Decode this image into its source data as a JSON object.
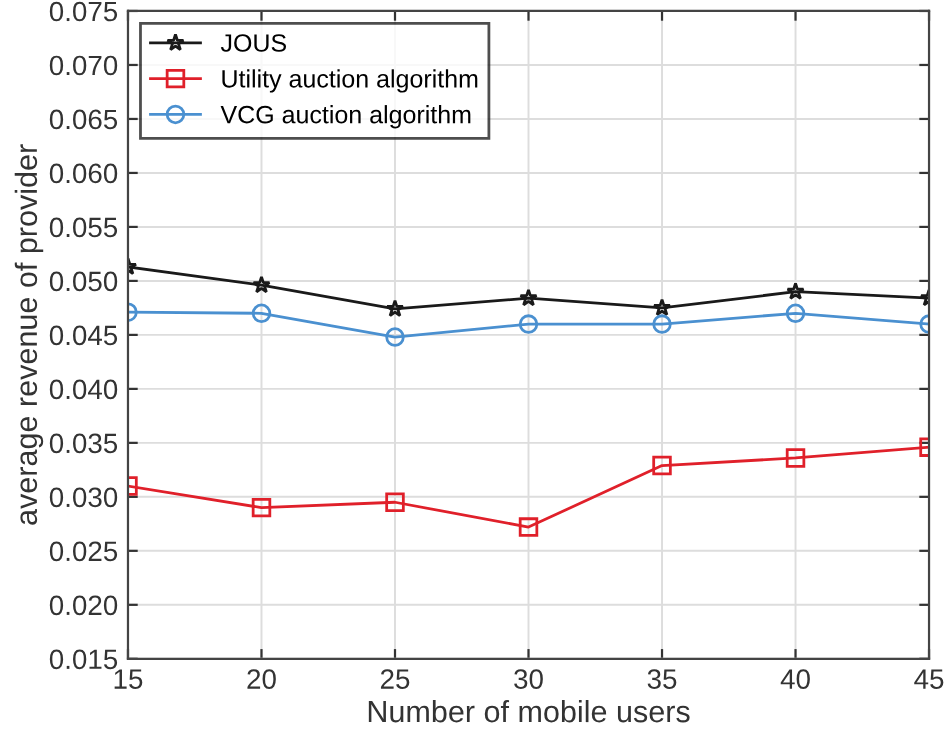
{
  "chart_data": {
    "type": "line",
    "xlabel": "Number of mobile users",
    "ylabel": "average revenue of provider",
    "x": [
      15,
      20,
      25,
      30,
      35,
      40,
      45
    ],
    "series": [
      {
        "name": "JOUS",
        "color": "#1a1a1a",
        "marker": "star",
        "values": [
          0.0513,
          0.0496,
          0.0474,
          0.0484,
          0.0475,
          0.049,
          0.0484
        ]
      },
      {
        "name": "Utility auction algorithm",
        "color": "#e0202a",
        "marker": "square",
        "values": [
          0.031,
          0.029,
          0.0295,
          0.0272,
          0.0329,
          0.0336,
          0.0346
        ]
      },
      {
        "name": "VCG auction algorithm",
        "color": "#4a90d0",
        "marker": "circle",
        "values": [
          0.0471,
          0.047,
          0.0448,
          0.046,
          0.046,
          0.047,
          0.046
        ]
      }
    ],
    "xlim": [
      15,
      45
    ],
    "xticks": [
      15,
      20,
      25,
      30,
      35,
      40,
      45
    ],
    "ylim": [
      0.015,
      0.075
    ],
    "yticks": [
      {
        "value": 0.015,
        "label": "0.015"
      },
      {
        "value": 0.02,
        "label": "0.020"
      },
      {
        "value": 0.025,
        "label": "0.025"
      },
      {
        "value": 0.03,
        "label": "0.030"
      },
      {
        "value": 0.035,
        "label": "0.035"
      },
      {
        "value": 0.04,
        "label": "0.040"
      },
      {
        "value": 0.045,
        "label": "0.045"
      },
      {
        "value": 0.05,
        "label": "0.050"
      },
      {
        "value": 0.055,
        "label": "0.055"
      },
      {
        "value": 0.06,
        "label": "0.060"
      },
      {
        "value": 0.065,
        "label": "0.065"
      },
      {
        "value": 0.07,
        "label": "0.070"
      },
      {
        "value": 0.075,
        "label": "0.075"
      }
    ],
    "grid": true,
    "legend": "top left",
    "line_style": "solid"
  }
}
